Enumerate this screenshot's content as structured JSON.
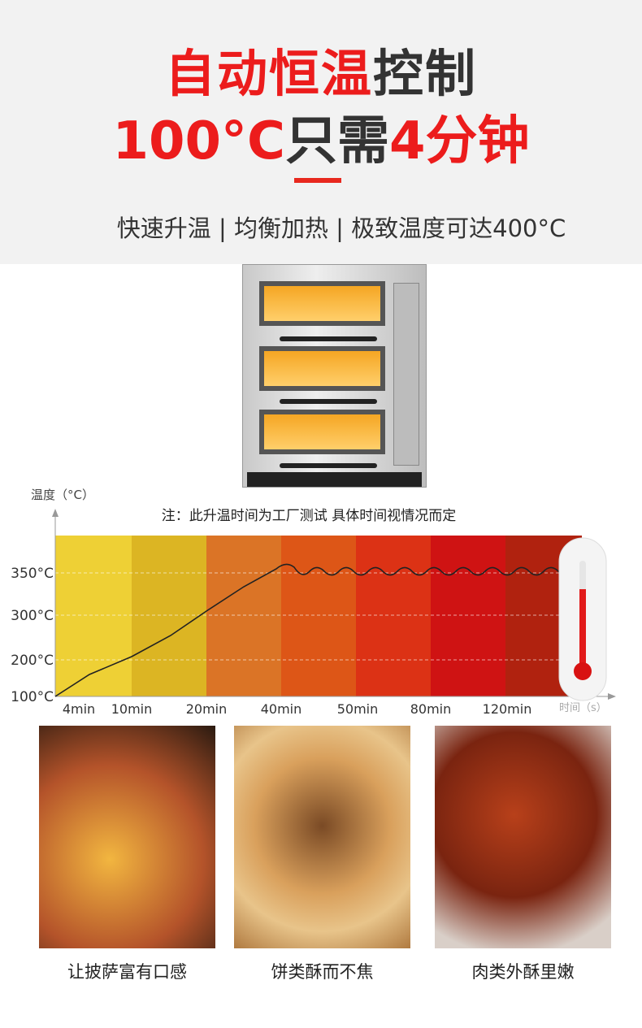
{
  "header": {
    "title_line1": {
      "red": "自动恒温",
      "dark": "控制"
    },
    "title_line2": {
      "red1": "100°C",
      "dark": "只需",
      "red2": "4分钟"
    },
    "subtitle": "快速升温 | 均衡加热 | 极致温度可达400°C"
  },
  "colors": {
    "accent": "#ec1c1c",
    "header_bg": "#f2f2f2"
  },
  "chart_data": {
    "type": "line",
    "ylabel": "温度（°C）",
    "xlabel": "时间（s）",
    "note": "注：此升温时间为工厂测试  具体时间视情况而定",
    "x_ticks": [
      "4min",
      "10min",
      "20min",
      "40min",
      "50min",
      "80min",
      "120min"
    ],
    "y_ticks": [
      "100°C",
      "200°C",
      "300°C",
      "350°C"
    ],
    "band_colors": [
      "#eed035",
      "#dcb523",
      "#db7426",
      "#dd5617",
      "#dc3215",
      "#cf1313",
      "#b0220f"
    ],
    "grid": true,
    "description_of_curve": "",
    "series": [
      {
        "x": [
          "start",
          "10min",
          "20min",
          "40min",
          "50min",
          "80min",
          "120min",
          "end"
        ],
        "values": [
          100,
          200,
          300,
          350,
          350,
          350,
          350,
          350
        ]
      }
    ]
  },
  "foods": [
    {
      "caption": "让披萨富有口感",
      "icon": "pizza-photo"
    },
    {
      "caption": "饼类酥而不焦",
      "icon": "pastry-photo"
    },
    {
      "caption": "肉类外酥里嫩",
      "icon": "chicken-wings-photo"
    }
  ]
}
